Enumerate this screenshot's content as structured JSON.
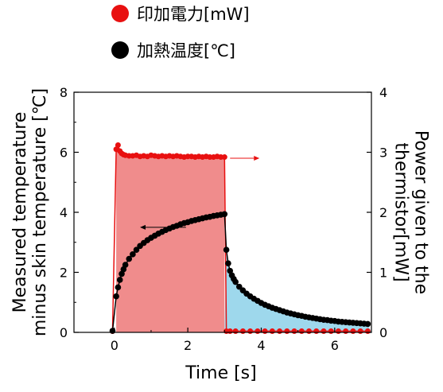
{
  "legend": [
    {
      "label": "印加電力[mW]",
      "color": "#e81010"
    },
    {
      "label": "加熱温度[℃]",
      "color": "#000000"
    }
  ],
  "chart_data": {
    "type": "scatter",
    "xlabel": "Time [s]",
    "ylabel_left": "Measured temperature minus skin temperature [℃]",
    "ylabel_right": "Power given to the thermistor[mW]",
    "xlim": [
      -1.1,
      7
    ],
    "ylim_left": [
      0,
      8
    ],
    "ylim_right": [
      0,
      4
    ],
    "xticks": [
      0,
      2,
      4,
      6
    ],
    "yticks_left": [
      0,
      2,
      4,
      6,
      8
    ],
    "yticks_right": [
      0,
      1,
      2,
      3,
      4
    ],
    "grid": false,
    "series": [
      {
        "name": "印加電力[mW]",
        "color": "#e81010",
        "axis": "right",
        "fill": "#f08c8c",
        "x": [
          -0.05,
          0.05,
          0.1,
          0.15,
          0.2,
          0.25,
          0.3,
          0.4,
          0.5,
          0.6,
          0.7,
          0.8,
          0.9,
          1.0,
          1.1,
          1.2,
          1.3,
          1.4,
          1.5,
          1.6,
          1.7,
          1.8,
          1.9,
          2.0,
          2.1,
          2.2,
          2.3,
          2.4,
          2.5,
          2.6,
          2.7,
          2.8,
          2.9,
          3.0,
          3.05,
          3.15,
          3.3,
          3.5,
          3.7,
          3.9,
          4.1,
          4.3,
          4.5,
          4.7,
          4.9,
          5.1,
          5.3,
          5.5,
          5.7,
          5.9,
          6.1,
          6.3,
          6.5,
          6.7,
          6.9
        ],
        "values": [
          0.02,
          3.05,
          3.12,
          3.02,
          2.98,
          2.96,
          2.95,
          2.94,
          2.94,
          2.95,
          2.93,
          2.94,
          2.93,
          2.95,
          2.94,
          2.93,
          2.94,
          2.93,
          2.94,
          2.93,
          2.94,
          2.93,
          2.92,
          2.93,
          2.93,
          2.92,
          2.93,
          2.92,
          2.93,
          2.92,
          2.92,
          2.93,
          2.92,
          2.92,
          0.02,
          0.02,
          0.02,
          0.02,
          0.02,
          0.02,
          0.02,
          0.02,
          0.02,
          0.02,
          0.02,
          0.02,
          0.02,
          0.02,
          0.02,
          0.02,
          0.02,
          0.02,
          0.02,
          0.02,
          0.02
        ]
      },
      {
        "name": "加熱温度[℃]",
        "color": "#000000",
        "axis": "left",
        "fill": "#9ed8ec",
        "x": [
          -0.05,
          0.05,
          0.1,
          0.15,
          0.2,
          0.25,
          0.3,
          0.4,
          0.5,
          0.6,
          0.7,
          0.8,
          0.9,
          1.0,
          1.1,
          1.2,
          1.3,
          1.4,
          1.5,
          1.6,
          1.7,
          1.8,
          1.9,
          2.0,
          2.1,
          2.2,
          2.3,
          2.4,
          2.5,
          2.6,
          2.7,
          2.8,
          2.9,
          3.0,
          3.05,
          3.1,
          3.15,
          3.2,
          3.25,
          3.3,
          3.4,
          3.5,
          3.6,
          3.7,
          3.8,
          3.9,
          4.0,
          4.1,
          4.2,
          4.3,
          4.4,
          4.5,
          4.6,
          4.7,
          4.8,
          4.9,
          5.0,
          5.1,
          5.2,
          5.3,
          5.4,
          5.5,
          5.6,
          5.7,
          5.8,
          5.9,
          6.0,
          6.1,
          6.2,
          6.3,
          6.4,
          6.5,
          6.6,
          6.7,
          6.8,
          6.9
        ],
        "values": [
          0.05,
          1.2,
          1.5,
          1.75,
          1.95,
          2.1,
          2.25,
          2.45,
          2.6,
          2.75,
          2.88,
          2.98,
          3.07,
          3.15,
          3.22,
          3.29,
          3.35,
          3.41,
          3.46,
          3.51,
          3.55,
          3.6,
          3.64,
          3.67,
          3.71,
          3.74,
          3.77,
          3.8,
          3.83,
          3.85,
          3.88,
          3.9,
          3.92,
          3.94,
          2.75,
          2.3,
          2.05,
          1.9,
          1.78,
          1.68,
          1.52,
          1.4,
          1.29,
          1.2,
          1.12,
          1.05,
          0.98,
          0.92,
          0.87,
          0.82,
          0.78,
          0.74,
          0.7,
          0.66,
          0.63,
          0.6,
          0.57,
          0.55,
          0.52,
          0.5,
          0.48,
          0.46,
          0.44,
          0.42,
          0.41,
          0.39,
          0.38,
          0.36,
          0.35,
          0.34,
          0.33,
          0.32,
          0.31,
          0.3,
          0.29,
          0.28
        ]
      }
    ]
  }
}
